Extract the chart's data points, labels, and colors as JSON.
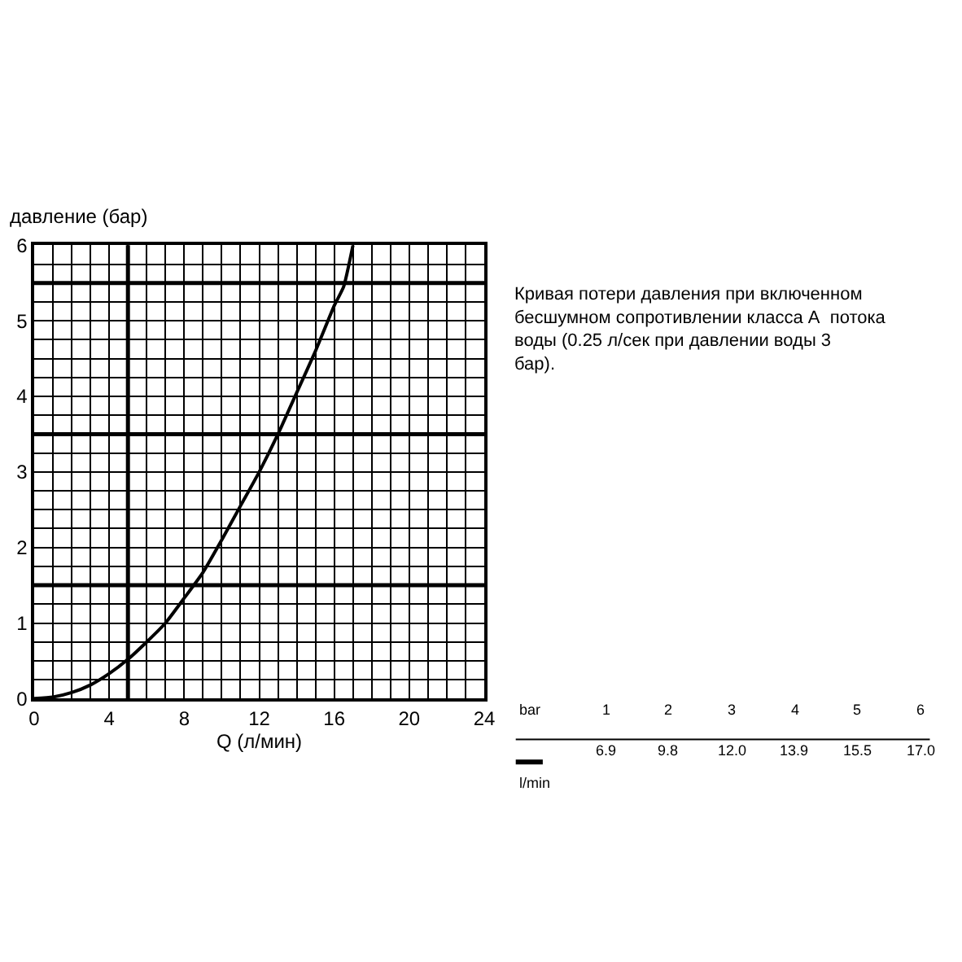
{
  "chart_data": {
    "type": "line",
    "ylabel": "давление (бар)",
    "xlabel": "Q (л/мин)",
    "series": [
      {
        "color": "#000000",
        "x": [
          0,
          1,
          2,
          3,
          4,
          5,
          6,
          7,
          8,
          9,
          10,
          11,
          12,
          13,
          14,
          15,
          16,
          16.5,
          17
        ],
        "values": [
          0,
          0.02,
          0.08,
          0.18,
          0.33,
          0.52,
          0.75,
          1.0,
          1.33,
          1.67,
          2.1,
          2.55,
          3.0,
          3.5,
          4.05,
          4.6,
          5.2,
          5.45,
          6.0
        ]
      }
    ],
    "xlim": [
      0,
      24
    ],
    "xticks": [
      0,
      4,
      8,
      12,
      16,
      20,
      24
    ],
    "ylim": [
      0,
      6
    ],
    "yticks": [
      0,
      1,
      2,
      3,
      4,
      5,
      6
    ],
    "grid": true,
    "legend": false,
    "marker": "none",
    "line_style": "solid",
    "ref_lines": [
      {
        "axis": "y",
        "value": 1.5,
        "label": null
      },
      {
        "axis": "y",
        "value": 3.5,
        "label": null
      },
      {
        "axis": "y",
        "value": 5.5,
        "label": null
      },
      {
        "axis": "x",
        "value": 5,
        "label": null
      }
    ],
    "annotations": [
      "Кривая потери давления при включенном бесшумном сопротивлении класса А  потока воды (0.25 л/сек при давлении воды 3 бар).",
      "bar",
      "1",
      "2",
      "3",
      "4",
      "5",
      "6",
      "l/min",
      "6.9",
      "9.8",
      "12.0",
      "13.9",
      "15.5",
      "17.0"
    ]
  }
}
